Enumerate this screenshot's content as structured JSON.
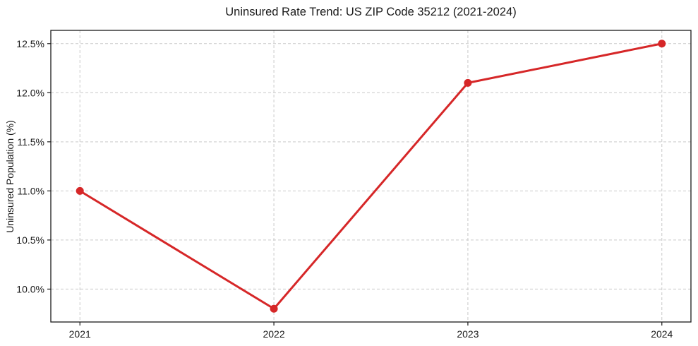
{
  "chart_data": {
    "type": "line",
    "title": "Uninsured Rate Trend: US ZIP Code 35212 (2021-2024)",
    "xlabel": "",
    "ylabel": "Uninsured Population (%)",
    "x": [
      2021,
      2022,
      2023,
      2024
    ],
    "series": [
      {
        "name": "Uninsured rate",
        "values": [
          11.0,
          9.8,
          12.1,
          12.5
        ],
        "color": "#d62728"
      }
    ],
    "xticks": {
      "values": [
        2021,
        2022,
        2023,
        2024
      ],
      "labels": [
        "2021",
        "2022",
        "2023",
        "2024"
      ]
    },
    "yticks": {
      "values": [
        10.0,
        10.5,
        11.0,
        11.5,
        12.0,
        12.5
      ],
      "labels": [
        "10.0%",
        "10.5%",
        "11.0%",
        "11.5%",
        "12.0%",
        "12.5%"
      ]
    },
    "xlim": [
      2020.85,
      2024.15
    ],
    "ylim": [
      9.665,
      12.635
    ],
    "grid": true,
    "grid_style": "dashed",
    "legend": "none",
    "marker": "circle",
    "colors": {
      "line": "#d62728",
      "grid": "#c9c9c9",
      "axis": "#1a1a1a",
      "text": "#1a1a1a",
      "background": "#ffffff"
    }
  }
}
